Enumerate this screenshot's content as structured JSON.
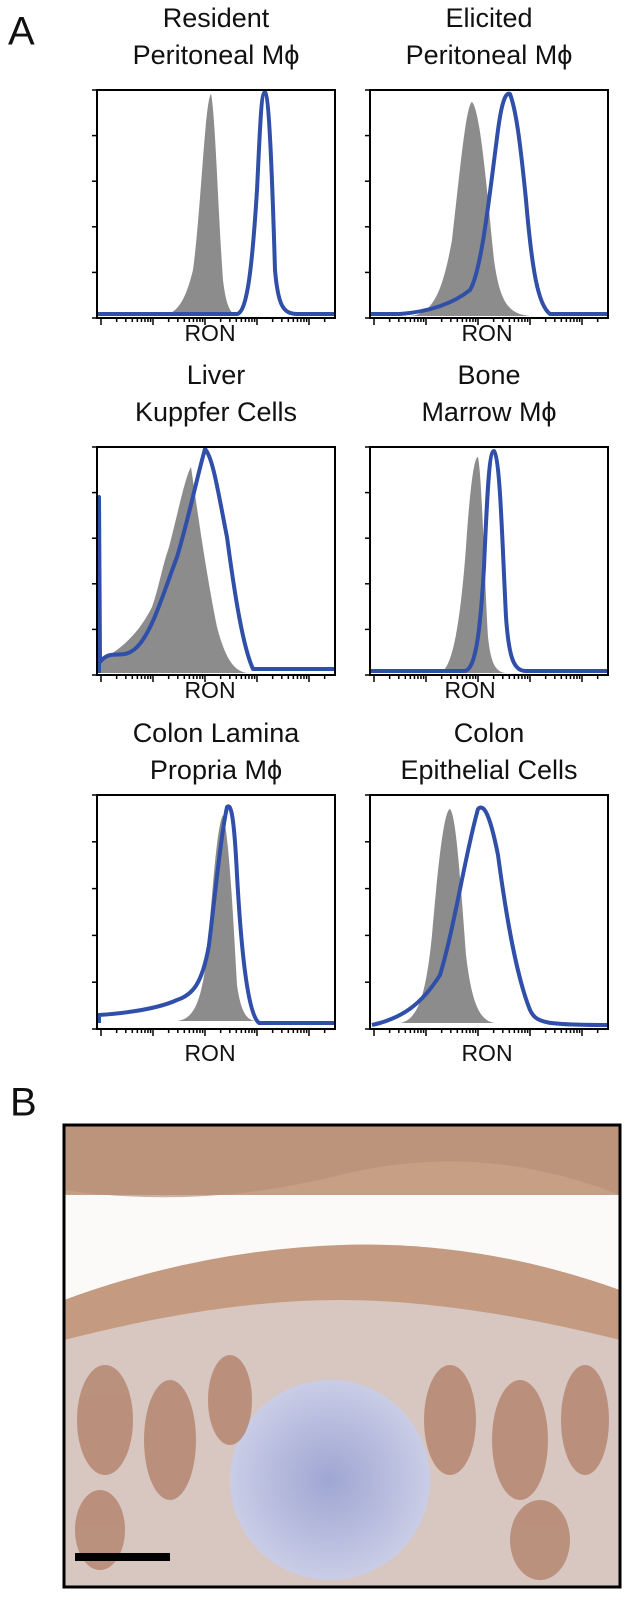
{
  "panel_a": {
    "label": "A",
    "plots": [
      {
        "title": [
          "Resident",
          "Peritoneal Mϕ"
        ],
        "x_label": "RON"
      },
      {
        "title": [
          "Elicited",
          "Peritoneal Mϕ"
        ],
        "x_label": "RON"
      },
      {
        "title": [
          "Liver",
          "Kuppfer Cells"
        ],
        "x_label": "RON"
      },
      {
        "title": [
          "Bone",
          "Marrow Mϕ"
        ],
        "x_label": "RON"
      },
      {
        "title": [
          "Colon Lamina",
          "Propria Mϕ"
        ],
        "x_label": "RON"
      },
      {
        "title": [
          "Colon",
          "Epithelial Cells"
        ],
        "x_label": "RON"
      }
    ]
  },
  "panel_b": {
    "label": "B"
  }
}
